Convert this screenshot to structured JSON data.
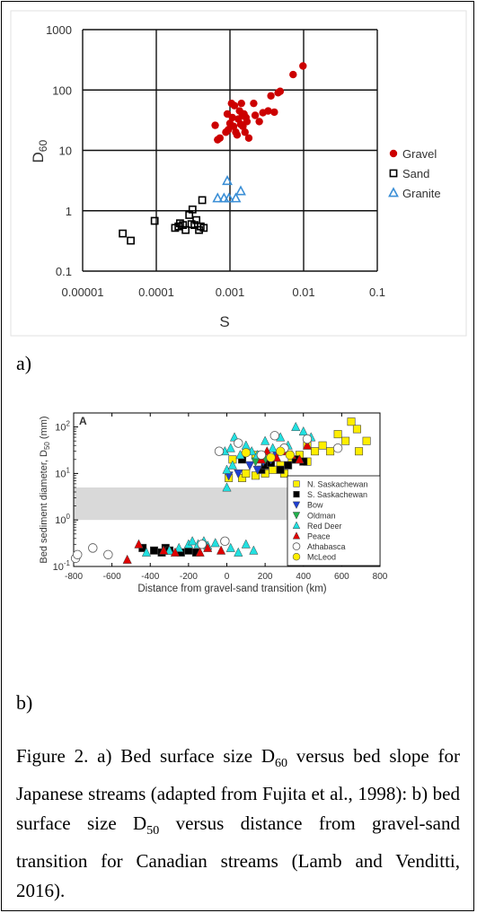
{
  "figure": {
    "panel_a_label": "a)",
    "panel_b_label": "b)",
    "caption": {
      "p1": "Figure 2. a) Bed surface size D",
      "sub1": "60",
      "p2": " versus bed slope for Japanese streams (adapted from Fujita et al., 1998): b) bed surface size D",
      "sub2": "50",
      "p3": " versus distance from gravel-sand transition for Canadian streams (Lamb and Venditti, 2016)."
    }
  },
  "chart_data": [
    {
      "type": "scatter",
      "title": "",
      "xlabel": "S",
      "ylabel": "D",
      "ylabel_sub": "60",
      "xscale": "log",
      "yscale": "log",
      "xlim": [
        1e-05,
        0.1
      ],
      "ylim": [
        0.1,
        1000
      ],
      "grid": true,
      "legend_position": "right",
      "x_tick_labels": [
        "0.00001",
        "0.0001",
        "0.001",
        "0.01",
        "0.1"
      ],
      "y_tick_labels": [
        "0.1",
        "1",
        "10",
        "100",
        "1000"
      ],
      "colors": {
        "gravel": "#cc0000",
        "sand": "#000000",
        "granite": "#3b8fd6"
      },
      "series": [
        {
          "name": "Gravel",
          "marker": "filled-circle",
          "points": [
            [
              0.00063,
              26
            ],
            [
              0.00068,
              15
            ],
            [
              0.00073,
              16
            ],
            [
              0.00088,
              20
            ],
            [
              0.00092,
              40
            ],
            [
              0.00095,
              22
            ],
            [
              0.001,
              28
            ],
            [
              0.00105,
              60
            ],
            [
              0.00108,
              35
            ],
            [
              0.00112,
              25
            ],
            [
              0.00115,
              55
            ],
            [
              0.0012,
              20
            ],
            [
              0.00125,
              18
            ],
            [
              0.0013,
              33
            ],
            [
              0.00135,
              45
            ],
            [
              0.0014,
              27
            ],
            [
              0.00143,
              60
            ],
            [
              0.00148,
              38
            ],
            [
              0.0015,
              25
            ],
            [
              0.00155,
              40
            ],
            [
              0.0016,
              20
            ],
            [
              0.00165,
              35
            ],
            [
              0.0017,
              30
            ],
            [
              0.0018,
              16
            ],
            [
              0.0021,
              60
            ],
            [
              0.0022,
              38
            ],
            [
              0.0025,
              30
            ],
            [
              0.0028,
              42
            ],
            [
              0.0033,
              45
            ],
            [
              0.0036,
              80
            ],
            [
              0.004,
              43
            ],
            [
              0.0045,
              90
            ],
            [
              0.0048,
              95
            ],
            [
              0.0072,
              180
            ],
            [
              0.0098,
              250
            ]
          ]
        },
        {
          "name": "Sand",
          "marker": "open-square",
          "points": [
            [
              3.5e-05,
              0.42
            ],
            [
              4.5e-05,
              0.32
            ],
            [
              9.5e-05,
              0.68
            ],
            [
              0.00018,
              0.52
            ],
            [
              0.0002,
              0.55
            ],
            [
              0.00021,
              0.62
            ],
            [
              0.00023,
              0.58
            ],
            [
              0.00025,
              0.48
            ],
            [
              0.00028,
              0.85
            ],
            [
              0.0003,
              0.6
            ],
            [
              0.00031,
              1.05
            ],
            [
              0.00033,
              0.58
            ],
            [
              0.00035,
              0.7
            ],
            [
              0.00038,
              0.48
            ],
            [
              0.0004,
              0.55
            ],
            [
              0.00042,
              1.5
            ],
            [
              0.00044,
              0.52
            ]
          ]
        },
        {
          "name": "Granite",
          "marker": "open-triangle",
          "points": [
            [
              0.00068,
              1.6
            ],
            [
              0.00083,
              1.6
            ],
            [
              0.00092,
              3.1
            ],
            [
              0.00097,
              1.6
            ],
            [
              0.0012,
              1.6
            ],
            [
              0.0014,
              2.1
            ]
          ]
        }
      ]
    },
    {
      "type": "scatter",
      "title": "",
      "panel_letter": "A",
      "xlabel": "Distance from gravel-sand transition (km)",
      "ylabel": "Bed sediment diameter, D",
      "ylabel_sub": "50",
      "ylabel_unit": "(mm)",
      "xlim": [
        -800,
        800
      ],
      "ylim": [
        0.1,
        200
      ],
      "yscale": "log",
      "x_tick_labels": [
        "-800",
        "-600",
        "-400",
        "-200",
        "0",
        "200",
        "400",
        "600",
        "800"
      ],
      "y_tick_labels": [
        {
          "base": "10",
          "exp": "-1"
        },
        {
          "base": "10",
          "exp": "0"
        },
        {
          "base": "10",
          "exp": "1"
        },
        {
          "base": "10",
          "exp": "2"
        }
      ],
      "shaded_band": [
        1,
        5
      ],
      "legend_position": "lower-right",
      "series": [
        {
          "name": "N. Saskachewan",
          "marker": "square",
          "color": "#ffee00",
          "points": [
            [
              10,
              8
            ],
            [
              30,
              20
            ],
            [
              80,
              8
            ],
            [
              100,
              10
            ],
            [
              150,
              9
            ],
            [
              200,
              10
            ],
            [
              240,
              12
            ],
            [
              280,
              15
            ],
            [
              300,
              10
            ],
            [
              340,
              20
            ],
            [
              380,
              25
            ],
            [
              420,
              18
            ],
            [
              460,
              30
            ],
            [
              500,
              40
            ],
            [
              540,
              30
            ],
            [
              580,
              70
            ],
            [
              620,
              50
            ],
            [
              650,
              130
            ],
            [
              680,
              90
            ],
            [
              730,
              50
            ],
            [
              690,
              30
            ],
            [
              150,
              25
            ],
            [
              420,
              40
            ]
          ]
        },
        {
          "name": "S. Saskachewan",
          "marker": "square",
          "color": "#000000",
          "points": [
            [
              -440,
              0.25
            ],
            [
              -380,
              0.22
            ],
            [
              -340,
              0.2
            ],
            [
              -320,
              0.25
            ],
            [
              -300,
              0.22
            ],
            [
              -240,
              0.2
            ],
            [
              -200,
              0.22
            ],
            [
              -160,
              0.2
            ],
            [
              80,
              20
            ],
            [
              180,
              12
            ],
            [
              200,
              15
            ],
            [
              230,
              17
            ],
            [
              280,
              12
            ],
            [
              320,
              15
            ],
            [
              360,
              20
            ],
            [
              400,
              18
            ]
          ]
        },
        {
          "name": "Bow",
          "marker": "triangle-down",
          "color": "#1f3fd1",
          "points": [
            [
              10,
              9
            ],
            [
              60,
              10
            ],
            [
              120,
              15
            ],
            [
              160,
              12
            ],
            [
              190,
              18
            ],
            [
              230,
              20
            ],
            [
              260,
              25
            ]
          ]
        },
        {
          "name": "Oldman",
          "marker": "triangle-down",
          "color": "#22b14c",
          "points": [
            [
              150,
              18
            ],
            [
              200,
              20
            ]
          ]
        },
        {
          "name": "Red Deer",
          "marker": "triangle",
          "color": "#22e0e0",
          "points": [
            [
              -420,
              0.2
            ],
            [
              -300,
              0.22
            ],
            [
              -250,
              0.25
            ],
            [
              -200,
              0.3
            ],
            [
              -180,
              0.35
            ],
            [
              -150,
              0.3
            ],
            [
              -120,
              0.35
            ],
            [
              -100,
              0.28
            ],
            [
              -60,
              0.32
            ],
            [
              20,
              0.25
            ],
            [
              60,
              0.2
            ],
            [
              100,
              0.3
            ],
            [
              140,
              0.22
            ],
            [
              -10,
              30
            ],
            [
              20,
              35
            ],
            [
              40,
              60
            ],
            [
              70,
              25
            ],
            [
              100,
              40
            ],
            [
              130,
              30
            ],
            [
              160,
              25
            ],
            [
              200,
              50
            ],
            [
              240,
              35
            ],
            [
              280,
              60
            ],
            [
              320,
              40
            ],
            [
              360,
              100
            ],
            [
              400,
              80
            ],
            [
              440,
              60
            ],
            [
              0,
              5
            ],
            [
              0,
              12
            ],
            [
              30,
              15
            ]
          ]
        },
        {
          "name": "Peace",
          "marker": "triangle",
          "color": "#e00000",
          "points": [
            [
              -520,
              0.14
            ],
            [
              -460,
              0.3
            ],
            [
              -330,
              0.22
            ],
            [
              -270,
              0.2
            ],
            [
              -140,
              0.2
            ],
            [
              -100,
              0.25
            ],
            [
              -30,
              0.22
            ],
            [
              180,
              20
            ],
            [
              210,
              30
            ],
            [
              260,
              22
            ],
            [
              300,
              30
            ],
            [
              340,
              25
            ],
            [
              380,
              20
            ],
            [
              420,
              40
            ]
          ]
        },
        {
          "name": "Athabasca",
          "marker": "open-circle",
          "color": "#ffffff",
          "points": [
            [
              -790,
              0.15
            ],
            [
              -780,
              0.18
            ],
            [
              -700,
              0.25
            ],
            [
              -620,
              0.18
            ],
            [
              -130,
              0.3
            ],
            [
              -40,
              30
            ],
            [
              -10,
              0.35
            ],
            [
              60,
              45
            ],
            [
              180,
              25
            ],
            [
              250,
              65
            ],
            [
              300,
              35
            ],
            [
              420,
              55
            ],
            [
              580,
              35
            ]
          ]
        },
        {
          "name": "McLeod",
          "marker": "circle",
          "color": "#ffee00",
          "points": [
            [
              100,
              28
            ],
            [
              230,
              22
            ],
            [
              280,
              30
            ],
            [
              330,
              25
            ]
          ]
        }
      ]
    }
  ]
}
